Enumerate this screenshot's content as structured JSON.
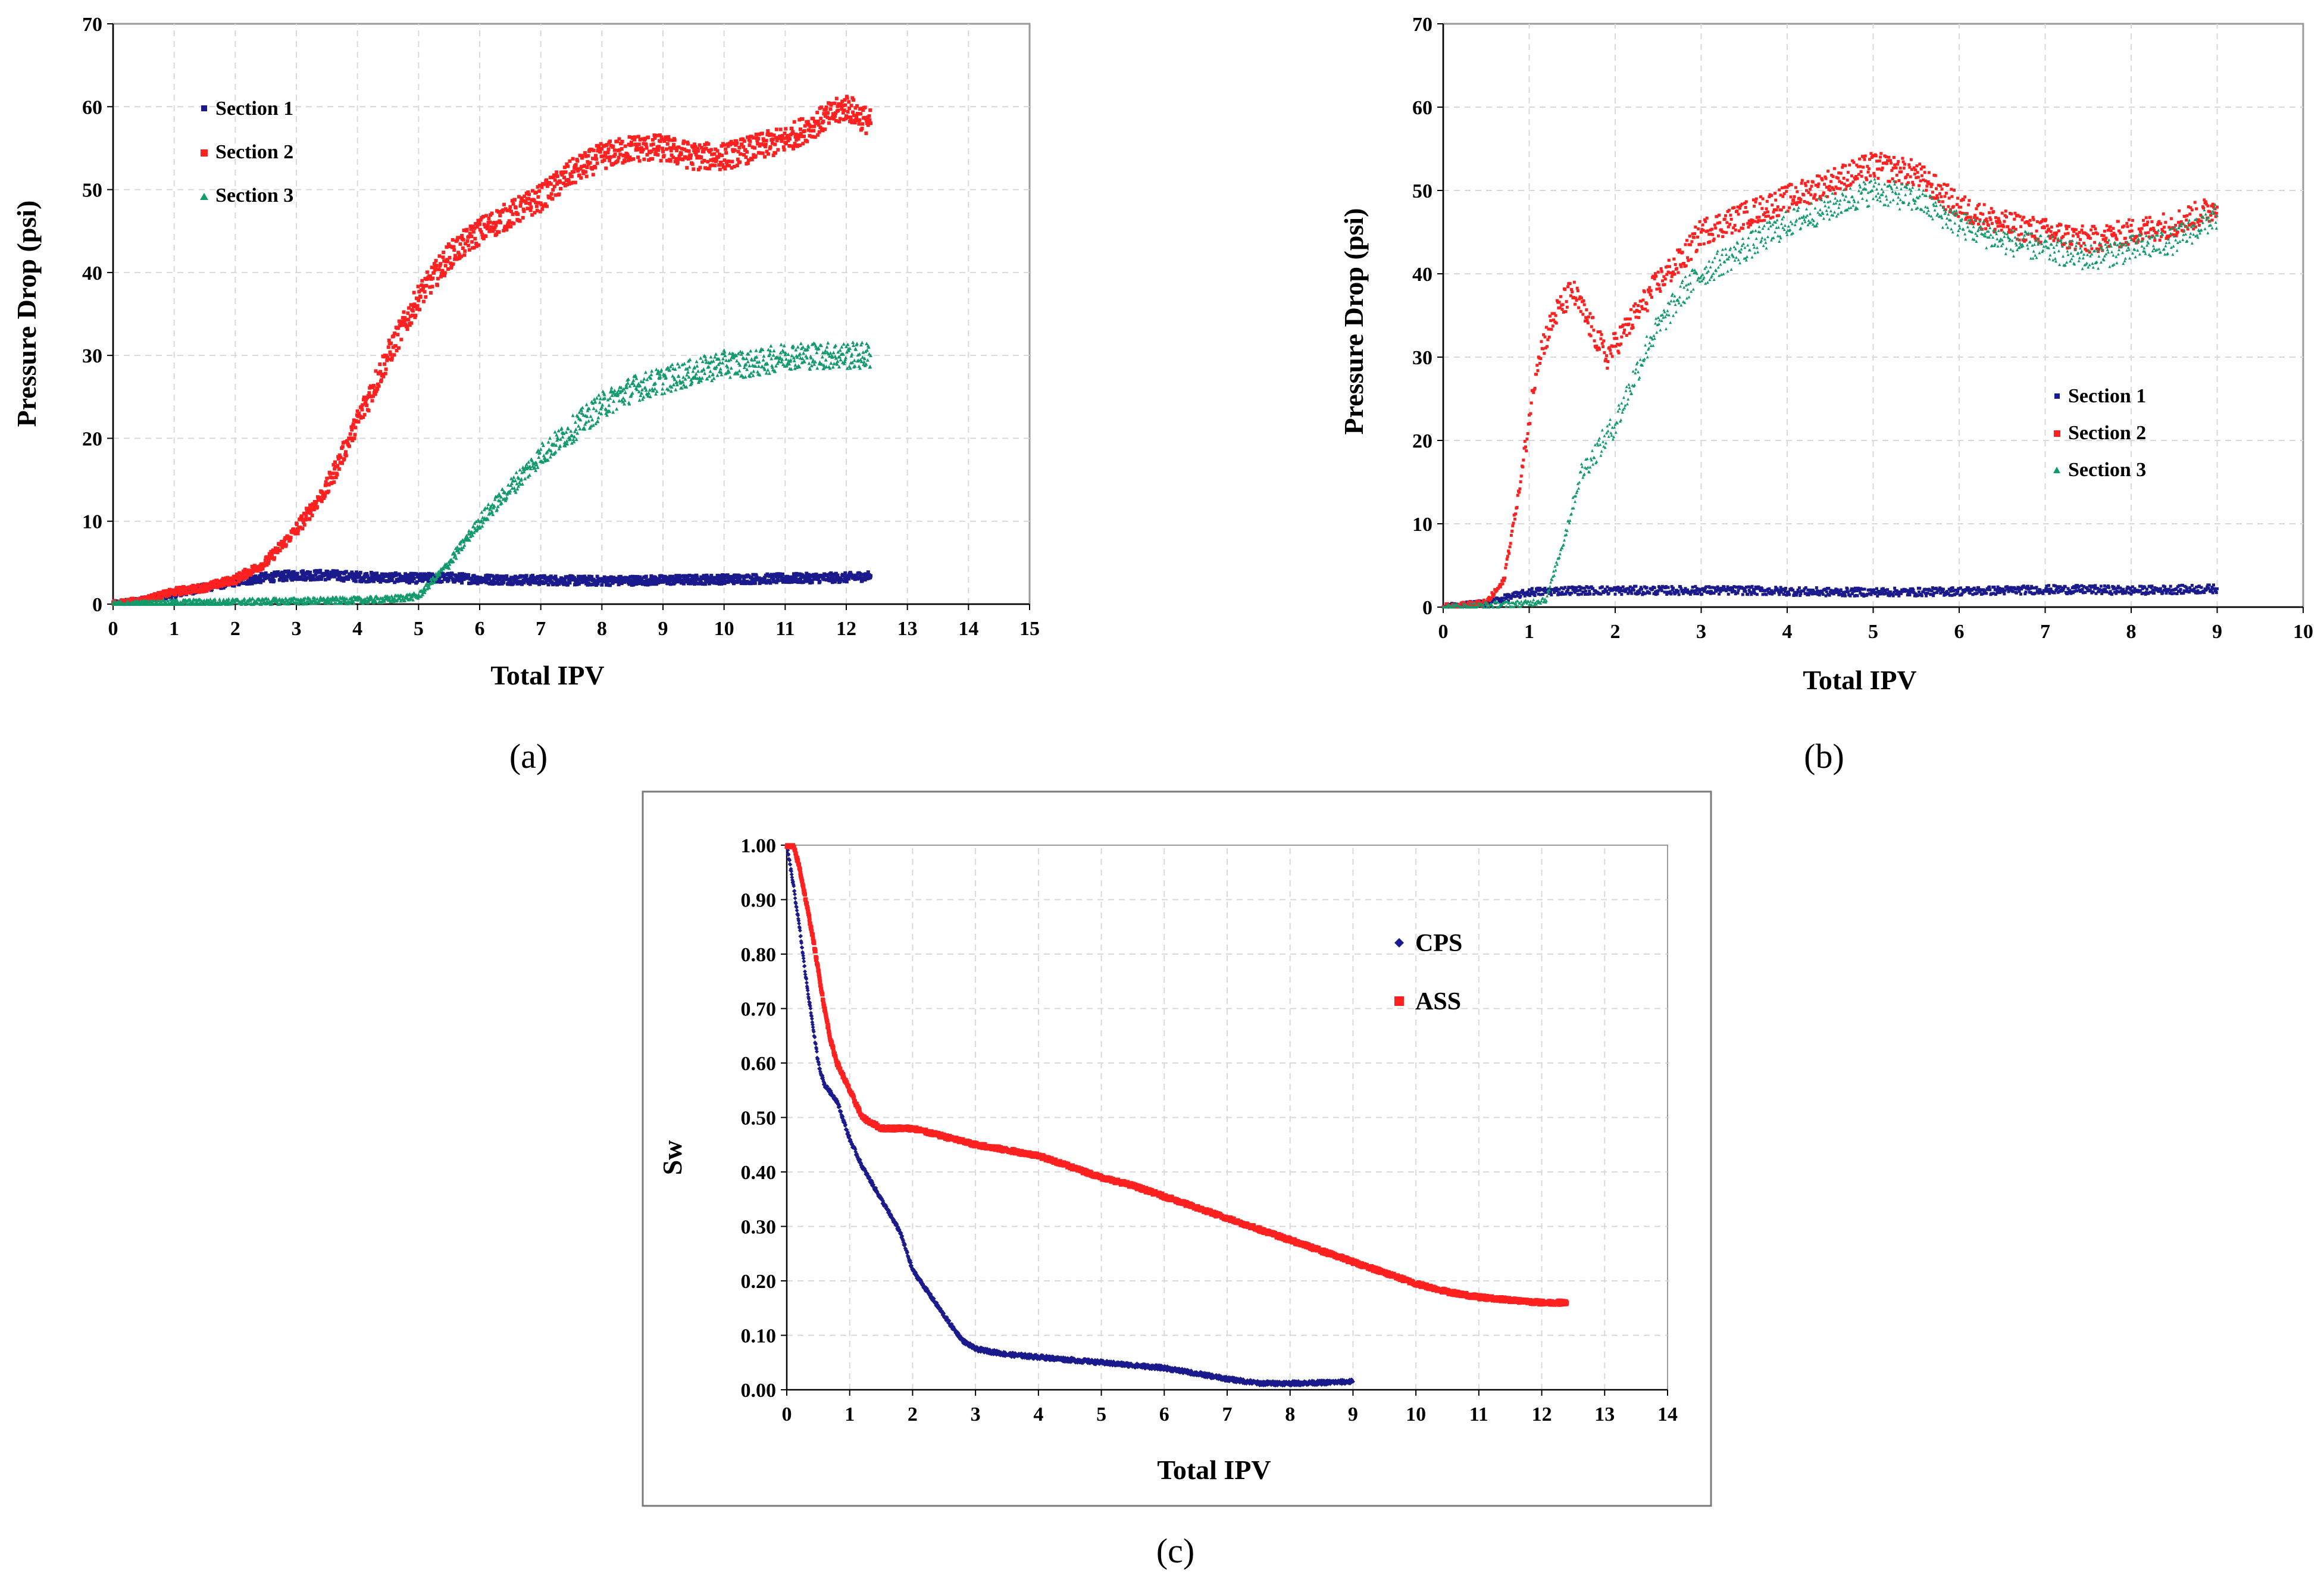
{
  "figure": {
    "panels": [
      "(a)",
      "(b)",
      "(c)"
    ]
  },
  "colors": {
    "section1": "#1a1a8c",
    "section2": "#ff2020",
    "section3": "#139a6c",
    "cps": "#1a1a8c",
    "ass": "#ff2020"
  },
  "chart_data": [
    {
      "panel": "(a)",
      "type": "scatter",
      "title": "",
      "xlabel": "Total IPV",
      "ylabel": "Pressure Drop (psi)",
      "xlim": [
        0,
        15
      ],
      "ylim": [
        0,
        70
      ],
      "xticks": [
        "0",
        "1",
        "2",
        "3",
        "4",
        "5",
        "6",
        "7",
        "8",
        "9",
        "10",
        "11",
        "12",
        "13",
        "14",
        "15"
      ],
      "yticks": [
        "0",
        "10",
        "20",
        "30",
        "40",
        "50",
        "60",
        "70"
      ],
      "grid": true,
      "legend": "top-left",
      "series": [
        {
          "name": "Section 1",
          "x": [
            0,
            0.5,
            1,
            1.5,
            2,
            2.5,
            3,
            3.5,
            4,
            4.5,
            5,
            5.5,
            6,
            7,
            8,
            9,
            10,
            11,
            12,
            12.4
          ],
          "y": [
            0,
            0.5,
            1.2,
            2,
            2.7,
            3.2,
            3.5,
            3.5,
            3.3,
            3.2,
            3.1,
            3.2,
            3,
            2.9,
            2.8,
            2.9,
            3,
            3.1,
            3.2,
            3.4
          ]
        },
        {
          "name": "Section 2",
          "x": [
            0,
            0.5,
            1,
            1.5,
            2,
            2.5,
            3,
            3.5,
            4,
            4.5,
            5,
            5.5,
            6,
            6.5,
            7,
            7.5,
            8,
            8.5,
            9,
            9.5,
            10,
            10.5,
            11,
            11.5,
            12,
            12.4
          ],
          "y": [
            0,
            0.5,
            1.5,
            2,
            3,
            5,
            9,
            14,
            22,
            30,
            37,
            42,
            45,
            47,
            49,
            52,
            54,
            55,
            55,
            54,
            54,
            55,
            56,
            58,
            60,
            58
          ]
        },
        {
          "name": "Section 3",
          "x": [
            0,
            1,
            2,
            3,
            4,
            4.5,
            5,
            5.5,
            6,
            6.5,
            7,
            7.5,
            8,
            8.5,
            9,
            9.5,
            10,
            10.5,
            11,
            11.5,
            12,
            12.4
          ],
          "y": [
            0,
            0.2,
            0.3,
            0.4,
            0.5,
            0.6,
            1,
            5,
            10,
            14,
            18,
            21,
            24,
            26,
            27,
            28,
            29,
            29,
            30,
            30,
            30,
            30
          ]
        }
      ]
    },
    {
      "panel": "(b)",
      "type": "scatter",
      "title": "",
      "xlabel": "Total IPV",
      "ylabel": "Pressure Drop (psi)",
      "xlim": [
        0,
        10
      ],
      "ylim": [
        0,
        70
      ],
      "xticks": [
        "0",
        "1",
        "2",
        "3",
        "4",
        "5",
        "6",
        "7",
        "8",
        "9",
        "10"
      ],
      "yticks": [
        "0",
        "10",
        "20",
        "30",
        "40",
        "50",
        "60",
        "70"
      ],
      "grid": true,
      "legend": "right-middle",
      "series": [
        {
          "name": "Section 1",
          "x": [
            0,
            0.5,
            1,
            1.5,
            2,
            2.5,
            3,
            3.5,
            4,
            4.5,
            5,
            5.5,
            6,
            6.5,
            7,
            7.5,
            8,
            8.5,
            9
          ],
          "y": [
            0,
            0.5,
            1.8,
            2,
            2,
            2,
            2,
            2,
            1.9,
            1.8,
            1.8,
            1.8,
            1.9,
            2,
            2.1,
            2.1,
            2,
            2.1,
            2.2
          ]
        },
        {
          "name": "Section 2",
          "x": [
            0,
            0.5,
            0.7,
            0.9,
            1.1,
            1.3,
            1.5,
            1.7,
            1.9,
            2.1,
            2.3,
            2.5,
            2.8,
            3,
            3.5,
            4,
            4.5,
            5,
            5.5,
            6,
            6.5,
            7,
            7.5,
            8,
            8.5,
            9
          ],
          "y": [
            0,
            0.5,
            3,
            15,
            30,
            35,
            38,
            34,
            30,
            33,
            36,
            39,
            42,
            45,
            47,
            49,
            51,
            53,
            52,
            48,
            46,
            45,
            44,
            45,
            46,
            48
          ]
        },
        {
          "name": "Section 3",
          "x": [
            0,
            1,
            1.2,
            1.4,
            1.6,
            1.8,
            2,
            2.2,
            2.4,
            2.6,
            2.8,
            3,
            3.5,
            4,
            4.5,
            5,
            5.5,
            6,
            6.5,
            7,
            7.5,
            8,
            8.5,
            9
          ],
          "y": [
            0,
            0.5,
            1,
            8,
            16,
            19,
            22,
            27,
            32,
            35,
            38,
            40,
            43,
            46,
            48,
            50,
            49,
            46,
            44,
            43,
            42,
            43,
            44,
            47
          ]
        }
      ]
    },
    {
      "panel": "(c)",
      "type": "scatter",
      "title": "",
      "xlabel": "Total IPV",
      "ylabel": "Sw",
      "xlim": [
        0,
        14
      ],
      "ylim": [
        0,
        1
      ],
      "xticks": [
        "0",
        "1",
        "2",
        "3",
        "4",
        "5",
        "6",
        "7",
        "8",
        "9",
        "10",
        "11",
        "12",
        "13",
        "14"
      ],
      "yticks": [
        "0.00",
        "0.10",
        "0.20",
        "0.30",
        "0.40",
        "0.50",
        "0.60",
        "0.70",
        "0.80",
        "0.90",
        "1.00"
      ],
      "grid": true,
      "legend": "top-right",
      "series": [
        {
          "name": "CPS",
          "x": [
            0,
            0.1,
            0.2,
            0.3,
            0.4,
            0.5,
            0.6,
            0.8,
            1,
            1.2,
            1.5,
            1.8,
            2,
            2.3,
            2.6,
            2.8,
            3,
            3.5,
            4,
            4.5,
            5,
            5.5,
            6,
            6.5,
            7,
            7.5,
            8,
            8.5,
            9
          ],
          "y": [
            1,
            0.93,
            0.85,
            0.76,
            0.68,
            0.6,
            0.56,
            0.53,
            0.46,
            0.41,
            0.35,
            0.29,
            0.22,
            0.17,
            0.12,
            0.09,
            0.075,
            0.065,
            0.06,
            0.055,
            0.05,
            0.045,
            0.04,
            0.03,
            0.02,
            0.012,
            0.012,
            0.013,
            0.015
          ]
        },
        {
          "name": "ASS",
          "x": [
            0,
            0.1,
            0.2,
            0.3,
            0.4,
            0.5,
            0.6,
            0.7,
            0.8,
            1,
            1.2,
            1.5,
            2,
            2.5,
            3,
            3.5,
            4,
            4.5,
            5,
            5.5,
            6,
            6.5,
            7,
            7.5,
            8,
            8.5,
            9,
            9.5,
            10,
            10.5,
            11,
            11.5,
            12,
            12.4
          ],
          "y": [
            1,
            1,
            0.96,
            0.9,
            0.84,
            0.77,
            0.7,
            0.64,
            0.6,
            0.55,
            0.5,
            0.48,
            0.48,
            0.465,
            0.45,
            0.44,
            0.43,
            0.41,
            0.39,
            0.375,
            0.355,
            0.335,
            0.315,
            0.295,
            0.275,
            0.255,
            0.235,
            0.215,
            0.195,
            0.18,
            0.17,
            0.165,
            0.16,
            0.16
          ]
        }
      ]
    }
  ]
}
